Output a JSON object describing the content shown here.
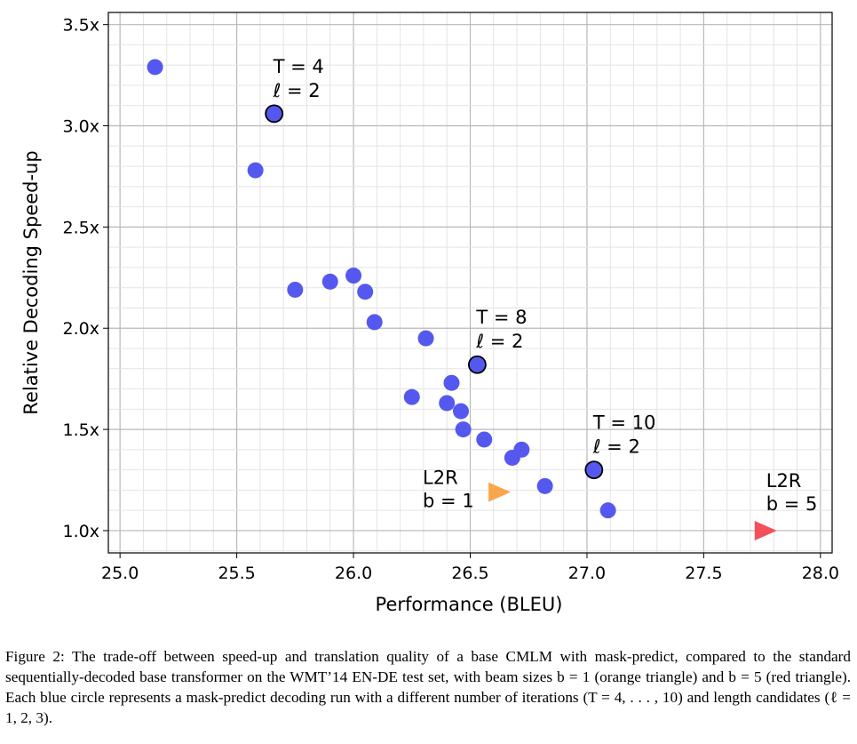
{
  "chart_data": {
    "type": "scatter",
    "xlabel": "Performance (BLEU)",
    "ylabel": "Relative Decoding Speed-up",
    "xlim": [
      24.95,
      28.05
    ],
    "ylim": [
      0.89,
      3.56
    ],
    "x_ticks": [
      25.0,
      25.5,
      26.0,
      26.5,
      27.0,
      27.5,
      28.0
    ],
    "x_tick_labels": [
      "25.0",
      "25.5",
      "26.0",
      "26.5",
      "27.0",
      "27.5",
      "28.0"
    ],
    "y_ticks": [
      1.0,
      1.5,
      2.0,
      2.5,
      3.0,
      3.5
    ],
    "y_tick_labels": [
      "1.0x",
      "1.5x",
      "2.0x",
      "2.5x",
      "3.0x",
      "3.5x"
    ],
    "grid": "major and minor",
    "colors": {
      "points": "#5558ee",
      "l2r_b1": "#f9a54d",
      "l2r_b5": "#f2505a",
      "grid": "#cccccc"
    },
    "points": [
      {
        "x": 25.15,
        "y": 3.29
      },
      {
        "x": 25.58,
        "y": 2.78
      },
      {
        "x": 25.75,
        "y": 2.19
      },
      {
        "x": 25.9,
        "y": 2.23
      },
      {
        "x": 26.0,
        "y": 2.26
      },
      {
        "x": 26.05,
        "y": 2.18
      },
      {
        "x": 26.09,
        "y": 2.03
      },
      {
        "x": 26.31,
        "y": 1.95
      },
      {
        "x": 26.25,
        "y": 1.66
      },
      {
        "x": 26.42,
        "y": 1.73
      },
      {
        "x": 26.4,
        "y": 1.63
      },
      {
        "x": 26.46,
        "y": 1.59
      },
      {
        "x": 26.47,
        "y": 1.5
      },
      {
        "x": 26.56,
        "y": 1.45
      },
      {
        "x": 26.68,
        "y": 1.36
      },
      {
        "x": 26.72,
        "y": 1.4
      },
      {
        "x": 26.82,
        "y": 1.22
      },
      {
        "x": 27.09,
        "y": 1.1
      }
    ],
    "highlighted": [
      {
        "x": 25.66,
        "y": 3.06,
        "line1": "T = 4",
        "line2": "ℓ = 2"
      },
      {
        "x": 26.53,
        "y": 1.82,
        "line1": "T = 8",
        "line2": "ℓ = 2"
      },
      {
        "x": 27.03,
        "y": 1.3,
        "line1": "T = 10",
        "line2": "ℓ = 2"
      }
    ],
    "baselines": [
      {
        "name": "l2r-b1",
        "x": 26.62,
        "y": 1.19,
        "color": "#f9a54d",
        "line1": "L2R",
        "line2": "b = 1"
      },
      {
        "name": "l2r-b5",
        "x": 27.76,
        "y": 1.0,
        "color": "#f2505a",
        "line1": "L2R",
        "line2": "b = 5"
      }
    ]
  },
  "caption": "Figure 2: The trade-off between speed-up and translation quality of a base CMLM with mask-predict, compared to the standard sequentially-decoded base transformer on the WMT’14 EN-DE test set, with beam sizes b = 1 (orange triangle) and b = 5 (red triangle). Each blue circle represents a mask-predict decoding run with a different number of iterations (T = 4, . . . , 10) and length candidates (ℓ = 1, 2, 3)."
}
